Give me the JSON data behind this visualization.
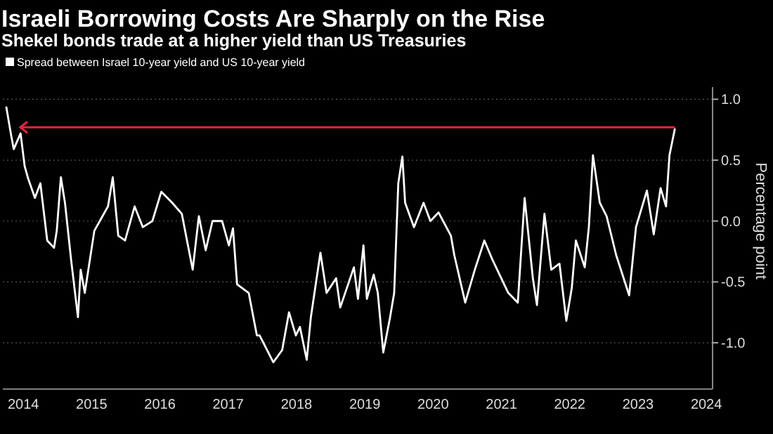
{
  "chart_data": {
    "type": "line",
    "title": "Israeli Borrowing Costs Are Sharply on the Rise",
    "subtitle": "Shekel bonds trade at a higher yield than US Treasuries",
    "ylabel": "Percentage point",
    "x": [
      2014.25,
      2014.32,
      2014.36,
      2014.46,
      2014.52,
      2014.57,
      2014.67,
      2014.75,
      2014.85,
      2014.95,
      2014.99,
      2015.05,
      2015.11,
      2015.2,
      2015.3,
      2015.34,
      2015.4,
      2015.54,
      2015.66,
      2015.74,
      2015.81,
      2015.89,
      2015.99,
      2016.13,
      2016.25,
      2016.39,
      2016.52,
      2016.68,
      2016.82,
      2016.98,
      2017.07,
      2017.17,
      2017.27,
      2017.41,
      2017.51,
      2017.57,
      2017.63,
      2017.8,
      2017.92,
      2017.96,
      2018.16,
      2018.29,
      2018.39,
      2018.49,
      2018.55,
      2018.65,
      2018.71,
      2018.85,
      2018.94,
      2019.08,
      2019.14,
      2019.34,
      2019.4,
      2019.48,
      2019.53,
      2019.63,
      2019.69,
      2019.77,
      2019.87,
      2019.93,
      2019.99,
      2020.05,
      2020.09,
      2020.22,
      2020.36,
      2020.46,
      2020.58,
      2020.76,
      2020.81,
      2020.97,
      2021.11,
      2021.25,
      2021.37,
      2021.6,
      2021.74,
      2021.84,
      2021.96,
      2022.02,
      2022.13,
      2022.23,
      2022.35,
      2022.45,
      2022.53,
      2022.59,
      2022.72,
      2022.78,
      2022.84,
      2022.94,
      2023.04,
      2023.18,
      2023.37,
      2023.47,
      2023.63,
      2023.73,
      2023.83,
      2023.91,
      2023.96,
      2024.04
    ],
    "series": [
      {
        "name": "Spread between Israel 10-year yield and US 10-year yield",
        "color": "#ffffff",
        "values": [
          0.94,
          0.71,
          0.59,
          0.72,
          0.45,
          0.35,
          0.19,
          0.31,
          -0.16,
          -0.22,
          -0.08,
          0.36,
          0.15,
          -0.32,
          -0.79,
          -0.4,
          -0.59,
          -0.08,
          0.04,
          0.12,
          0.36,
          -0.12,
          -0.16,
          0.12,
          -0.05,
          0.0,
          0.24,
          0.15,
          0.06,
          -0.4,
          0.04,
          -0.24,
          0.0,
          0.0,
          -0.2,
          -0.06,
          -0.52,
          -0.59,
          -0.94,
          -0.94,
          -1.16,
          -1.06,
          -0.75,
          -0.94,
          -0.87,
          -1.14,
          -0.79,
          -0.26,
          -0.59,
          -0.47,
          -0.71,
          -0.38,
          -0.64,
          -0.2,
          -0.64,
          -0.44,
          -0.59,
          -1.08,
          -0.79,
          -0.59,
          0.31,
          0.53,
          0.15,
          -0.05,
          0.15,
          0.0,
          0.07,
          -0.12,
          -0.28,
          -0.67,
          -0.4,
          -0.16,
          -0.32,
          -0.59,
          -0.67,
          0.19,
          -0.47,
          -0.69,
          0.06,
          -0.4,
          -0.35,
          -0.82,
          -0.55,
          -0.16,
          -0.38,
          -0.05,
          0.54,
          0.15,
          0.04,
          -0.28,
          -0.61,
          -0.05,
          0.25,
          -0.11,
          0.27,
          0.12,
          0.54,
          0.76
        ]
      }
    ],
    "xlim": [
      2014.2,
      2024.55
    ],
    "xticks": [
      {
        "value": 2014.5,
        "label": "2014"
      },
      {
        "value": 2015.5,
        "label": "2015"
      },
      {
        "value": 2016.5,
        "label": "2016"
      },
      {
        "value": 2017.5,
        "label": "2017"
      },
      {
        "value": 2018.5,
        "label": "2018"
      },
      {
        "value": 2019.5,
        "label": "2019"
      },
      {
        "value": 2020.5,
        "label": "2020"
      },
      {
        "value": 2021.5,
        "label": "2021"
      },
      {
        "value": 2022.5,
        "label": "2022"
      },
      {
        "value": 2023.5,
        "label": "2023"
      },
      {
        "value": 2024.5,
        "label": "2024"
      }
    ],
    "ylim": [
      -1.38,
      1.1
    ],
    "yticks": [
      {
        "value": -1,
        "label": "-1.0"
      },
      {
        "value": -0.5,
        "label": "-0.5"
      },
      {
        "value": 0,
        "label": "0.0"
      },
      {
        "value": 0.5,
        "label": "0.5"
      },
      {
        "value": 1,
        "label": "1.0"
      }
    ],
    "ref_lines": [
      {
        "axis": "y",
        "value": 0.77,
        "color": "#e8223c"
      }
    ],
    "grid": "y",
    "legend": "top left",
    "line_style": "solid",
    "marker": "none"
  }
}
